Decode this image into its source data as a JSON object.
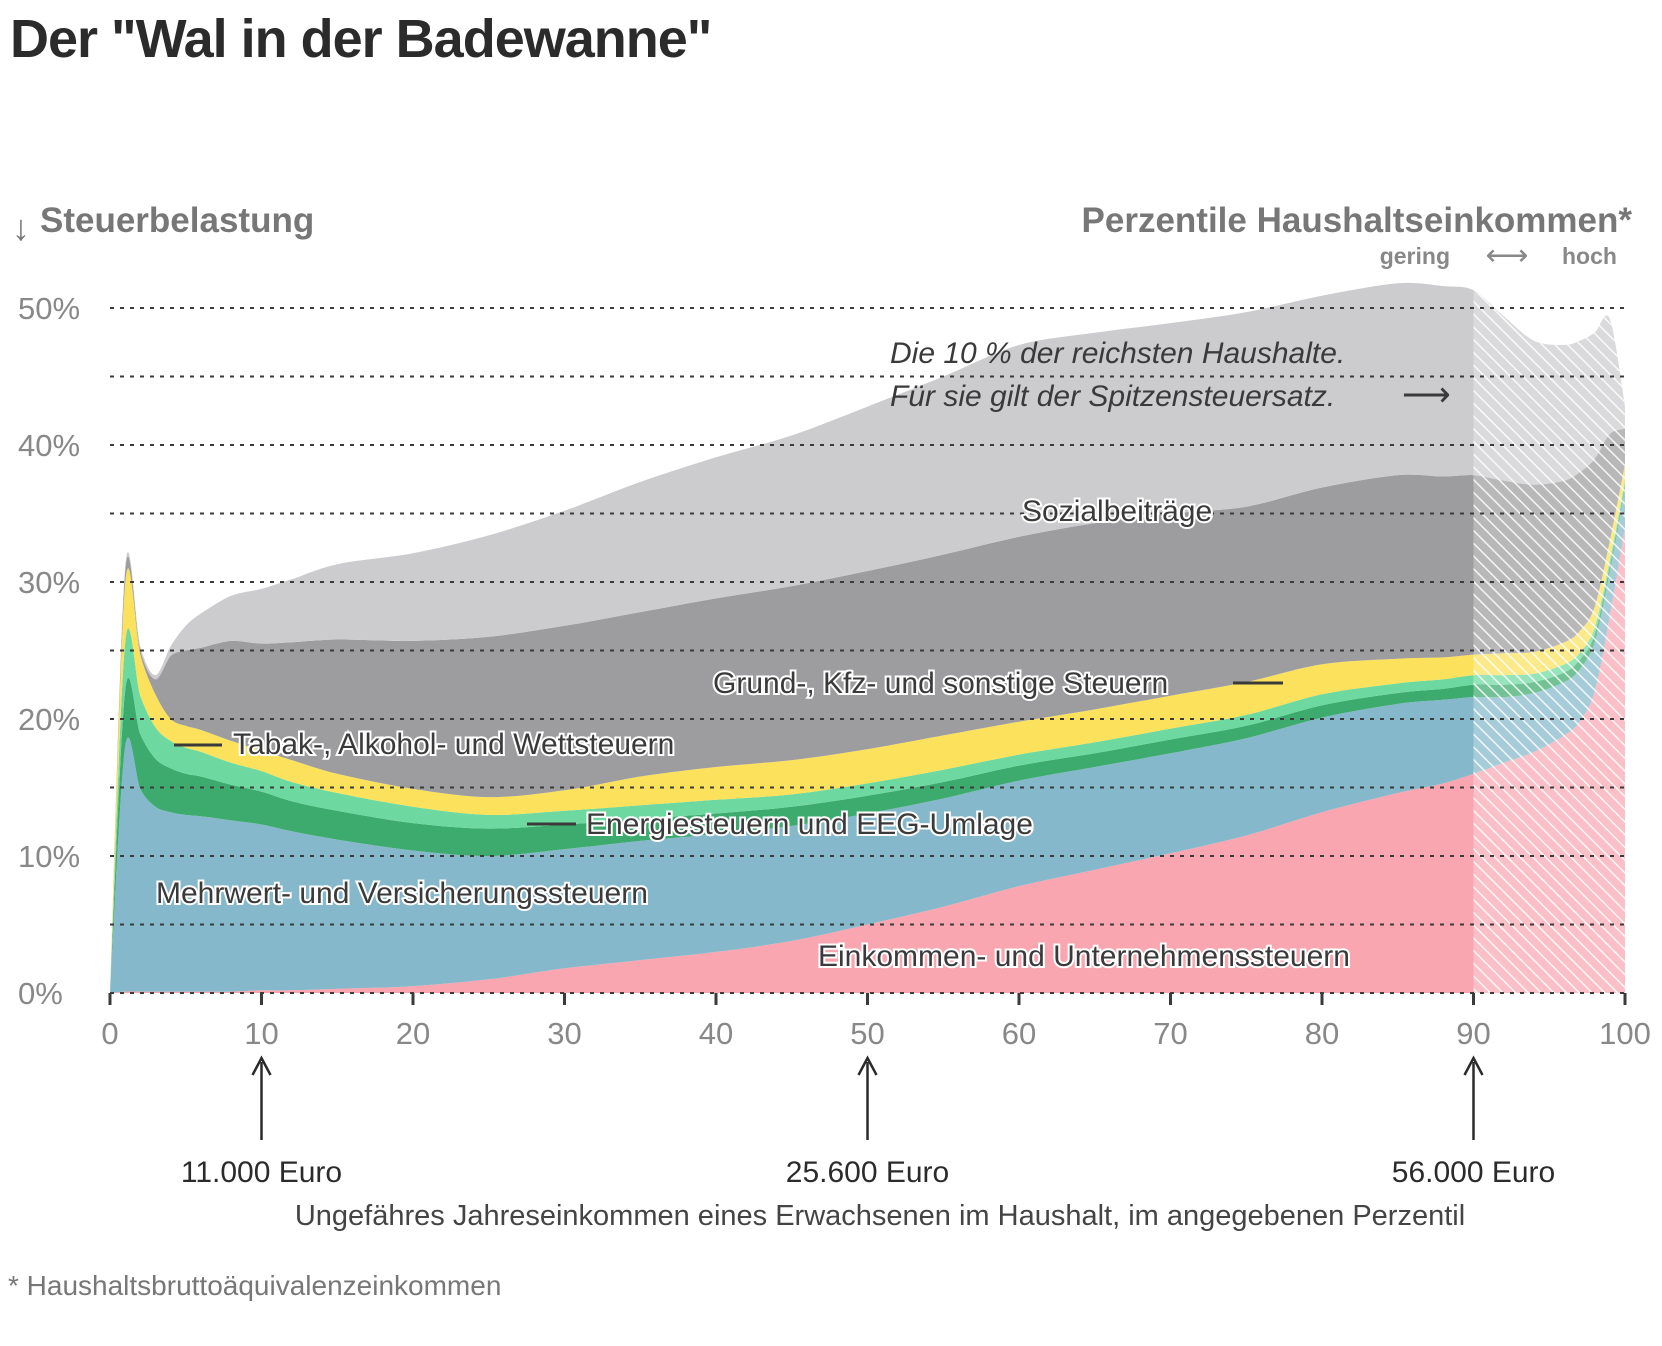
{
  "page": {
    "title": "Der \"Wal in der Badewanne\"",
    "footnote": "* Haushaltsbruttoäquivalenzeinkommen"
  },
  "chart_data": {
    "type": "area",
    "stacked": true,
    "title": "Der \"Wal in der Badewanne\"",
    "ylabel": "Steuerbelastung",
    "ylabel_arrow": "↓",
    "xlabel_top": "Perzentile Haushaltseinkommen*",
    "xlabel_top_scale": {
      "low": "gering",
      "arrow": "⟷",
      "high": "hoch"
    },
    "xlabel": "Ungefähres Jahreseinkommen eines Erwachsenen im Haushalt, im angegebenen Perzentil",
    "xlim": [
      0,
      100
    ],
    "ylim": [
      0,
      50
    ],
    "x_ticks": [
      0,
      10,
      20,
      30,
      40,
      50,
      60,
      70,
      80,
      90,
      100
    ],
    "y_ticks": [
      0,
      10,
      20,
      30,
      40,
      50
    ],
    "y_tick_labels": [
      "0%",
      "10%",
      "20%",
      "30%",
      "40%",
      "50%"
    ],
    "grid": {
      "dashed_every": 5,
      "orientation": "horizontal"
    },
    "hatched_from_x": 90,
    "x": [
      0,
      1,
      2,
      3,
      4,
      5,
      6,
      8,
      10,
      12,
      15,
      20,
      25,
      30,
      35,
      40,
      45,
      50,
      55,
      60,
      65,
      70,
      75,
      80,
      85,
      88,
      90,
      92,
      94,
      96,
      97,
      98,
      99,
      100
    ],
    "series": [
      {
        "name": "Einkommen- und Unternehmenssteuern",
        "color": "#f9a6b1",
        "values": [
          0,
          0.1,
          0.1,
          0.1,
          0.1,
          0.1,
          0.1,
          0.1,
          0.2,
          0.2,
          0.3,
          0.5,
          1.0,
          1.8,
          2.4,
          3.0,
          3.8,
          5.0,
          6.3,
          7.8,
          9.0,
          10.2,
          11.5,
          13.2,
          14.6,
          15.3,
          16.0,
          16.8,
          17.6,
          18.8,
          19.8,
          22.0,
          27.5,
          34.0
        ]
      },
      {
        "name": "Mehrwert- und Versicherungssteuern",
        "color": "#85b8ca",
        "values": [
          0,
          17.9,
          14.8,
          13.5,
          13.1,
          12.9,
          12.8,
          12.5,
          12.1,
          11.6,
          10.9,
          9.9,
          9.0,
          8.7,
          8.7,
          8.6,
          8.4,
          8.1,
          7.9,
          7.7,
          7.5,
          7.3,
          7.1,
          6.9,
          6.5,
          6.1,
          5.6,
          4.8,
          4.3,
          3.9,
          3.8,
          3.6,
          3.2,
          2.8
        ]
      },
      {
        "name": "Energiesteuern und EEG-Umlage",
        "color": "#3dab6d",
        "values": [
          0,
          4.1,
          4.0,
          3.5,
          3.2,
          3.0,
          2.9,
          2.6,
          2.4,
          2.2,
          2.1,
          2.0,
          2.0,
          1.8,
          1.6,
          1.5,
          1.4,
          1.3,
          1.2,
          1.1,
          1.0,
          1.0,
          0.9,
          0.9,
          0.8,
          0.8,
          0.9,
          0.9,
          0.8,
          0.7,
          0.7,
          0.6,
          0.5,
          0.3
        ]
      },
      {
        "name": "Tabak-, Alkohol- und Wettsteuern",
        "color": "#6dd9a0",
        "values": [
          0,
          3.5,
          2.8,
          2.3,
          2.0,
          1.9,
          1.8,
          1.6,
          1.5,
          1.4,
          1.3,
          1.2,
          1.0,
          1.0,
          1.0,
          1.0,
          0.9,
          0.9,
          0.9,
          0.8,
          0.8,
          0.8,
          0.8,
          0.8,
          0.7,
          0.7,
          0.7,
          0.7,
          0.6,
          0.6,
          0.5,
          0.5,
          0.4,
          0.3
        ]
      },
      {
        "name": "Grund-, Kfz- und sonstige Steuern",
        "color": "#fbe15c",
        "values": [
          0,
          4.3,
          3.0,
          2.4,
          1.6,
          1.6,
          1.6,
          1.6,
          1.5,
          1.6,
          1.4,
          1.3,
          1.3,
          1.5,
          2.1,
          2.4,
          2.5,
          2.5,
          2.5,
          2.4,
          2.4,
          2.4,
          2.4,
          2.2,
          1.8,
          1.6,
          1.5,
          1.6,
          1.6,
          1.6,
          1.6,
          1.5,
          1.4,
          1.2
        ]
      },
      {
        "name": "Sozialbeiträge",
        "color": "#9d9c9e",
        "values": [
          0,
          0.9,
          0.3,
          1.1,
          4.6,
          5.5,
          6.0,
          7.3,
          7.8,
          8.6,
          9.8,
          10.8,
          11.7,
          12.0,
          12.0,
          12.3,
          12.7,
          13.0,
          13.2,
          13.5,
          13.6,
          13.3,
          12.8,
          12.9,
          13.4,
          13.2,
          13.1,
          12.6,
          12.2,
          11.8,
          11.6,
          10.8,
          7.8,
          2.6
        ]
      },
      {
        "name": "Die 10 % der reichsten Haushalte.",
        "color": "#cccbcd",
        "values": [
          0,
          0.3,
          0.3,
          0.3,
          0.7,
          1.8,
          2.5,
          3.3,
          4.0,
          4.6,
          5.5,
          6.4,
          7.4,
          8.4,
          9.5,
          10.3,
          11.0,
          12.0,
          13.0,
          14.0,
          13.9,
          13.9,
          14.2,
          14.0,
          14.0,
          13.9,
          13.5,
          12.0,
          10.5,
          9.9,
          9.6,
          9.2,
          8.4,
          1.6
        ]
      }
    ],
    "annotations": [
      {
        "text": "Die 10 % der reichsten Haushalte.",
        "line": 1
      },
      {
        "text": "Für sie gilt der Spitzensteuersatz.",
        "line": 2,
        "arrow": "⟶"
      },
      {
        "text": "Sozialbeiträge"
      },
      {
        "text": "Grund-, Kfz- und sonstige Steuern"
      },
      {
        "text": "Tabak-, Alkohol- und Wettsteuern"
      },
      {
        "text": "Energiesteuern und EEG-Umlage"
      },
      {
        "text": "Mehrwert- und Versicherungssteuern"
      },
      {
        "text": "Einkommen- und Unternehmenssteuern"
      }
    ],
    "income_markers": [
      {
        "x": 10,
        "label": "11.000 Euro"
      },
      {
        "x": 50,
        "label": "25.600 Euro"
      },
      {
        "x": 90,
        "label": "56.000 Euro"
      }
    ]
  }
}
